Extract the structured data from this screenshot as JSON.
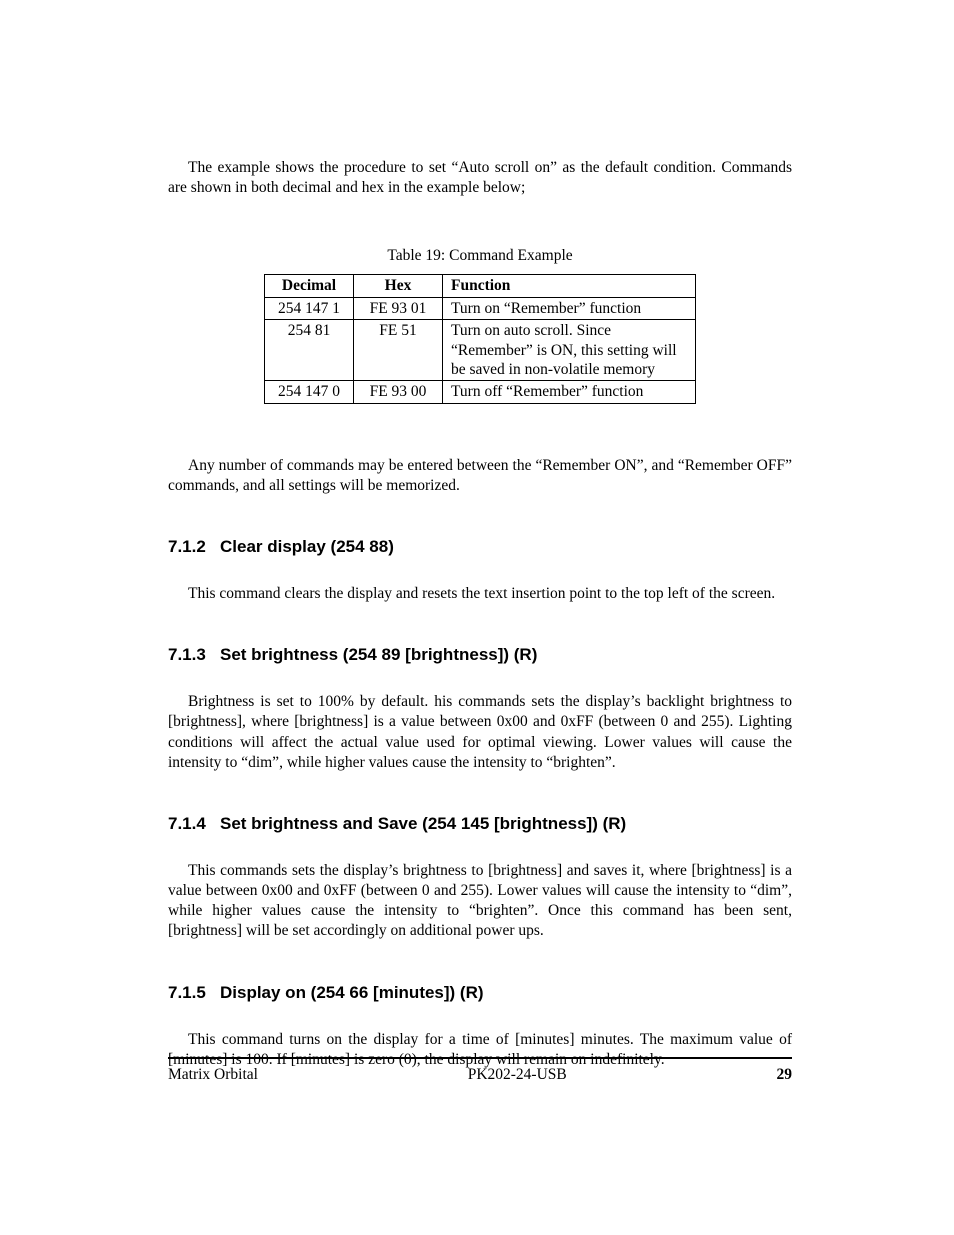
{
  "intro_paragraph": "The example shows the procedure to set “Auto scroll on” as the default condition. Commands are shown in both decimal and hex in the example below;",
  "table": {
    "caption": "Table 19: Command Example",
    "headers": {
      "decimal": "Decimal",
      "hex": "Hex",
      "function": "Function"
    },
    "rows": [
      {
        "decimal": "254 147 1",
        "hex": "FE 93 01",
        "function": "Turn on “Remember” function"
      },
      {
        "decimal": "254 81",
        "hex": "FE 51",
        "function": "Turn on auto scroll. Since “Remember” is ON, this setting will be saved in non-volatile memory"
      },
      {
        "decimal": "254 147 0",
        "hex": "FE 93 00",
        "function": "Turn off “Remember” function"
      }
    ]
  },
  "after_table_paragraph": "Any number of commands may be entered between the “Remember ON”, and “Remember OFF” commands, and all settings will be memorized.",
  "sections": {
    "s712": {
      "number": "7.1.2",
      "title": "Clear display (254 88)",
      "body": "This command clears the display and resets the text insertion point to the top left of the screen."
    },
    "s713": {
      "number": "7.1.3",
      "title": "Set brightness (254 89 [brightness]) (R)",
      "body": "Brightness is set to 100% by default. his commands sets the display’s backlight brightness to [brightness], where [brightness] is a value between 0x00 and 0xFF (between 0 and 255). Lighting conditions will affect the actual value used for optimal viewing. Lower values will cause the intensity to “dim”, while higher values cause the intensity to “brighten”."
    },
    "s714": {
      "number": "7.1.4",
      "title": "Set brightness and Save (254 145 [brightness]) (R)",
      "body": "This commands sets the display’s brightness to [brightness] and saves it, where [brightness] is a value between 0x00 and 0xFF (between 0 and 255). Lower values will cause the intensity to “dim”, while higher values cause the intensity to “brighten”. Once this command has been sent, [brightness] will be set accordingly on additional power ups."
    },
    "s715": {
      "number": "7.1.5",
      "title": "Display on (254 66 [minutes]) (R)",
      "body": "This command turns on the display for a time of [minutes] minutes. The maximum value of [minutes] is 100. If [minutes] is zero (0), the display will remain on indefinitely."
    }
  },
  "footer": {
    "left": "Matrix Orbital",
    "center": "PK202-24-USB",
    "page_number": "29"
  }
}
